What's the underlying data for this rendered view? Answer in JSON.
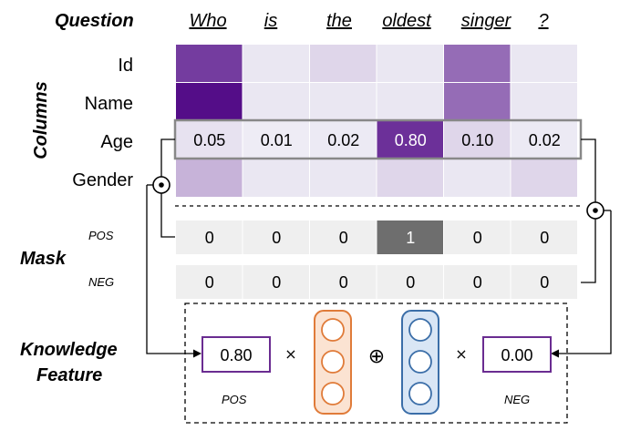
{
  "labels": {
    "question": "Question",
    "columns": "Columns",
    "mask": "Mask",
    "knowledge_line1": "Knowledge",
    "knowledge_line2": "Feature",
    "pos": "POS",
    "neg": "NEG"
  },
  "question_tokens": [
    "Who",
    "is",
    "the",
    "oldest",
    "singer",
    "?"
  ],
  "column_names": [
    "Id",
    "Name",
    "Age",
    "Gender"
  ],
  "attention": [
    [
      0.75,
      0.03,
      0.1,
      0.03,
      0.55,
      0.03
    ],
    [
      0.95,
      0.03,
      0.03,
      0.03,
      0.55,
      0.03
    ],
    [
      0.05,
      0.01,
      0.02,
      0.8,
      0.1,
      0.02
    ],
    [
      0.25,
      0.03,
      0.03,
      0.1,
      0.03,
      0.1
    ]
  ],
  "age_row_labels": [
    "0.05",
    "0.01",
    "0.02",
    "0.80",
    "0.10",
    "0.02"
  ],
  "mask_pos": [
    "0",
    "0",
    "0",
    "1",
    "0",
    "0"
  ],
  "mask_neg": [
    "0",
    "0",
    "0",
    "0",
    "0",
    "0"
  ],
  "feature": {
    "pos_value": "0.80",
    "neg_value": "0.00",
    "times_symbol": "×",
    "concat_symbol": "⊕",
    "odot_symbol": "⊙"
  },
  "colors": {
    "attention_base": "#4b0082",
    "pos_highlight": "#6e6e6e",
    "mask_bg": "#efefef",
    "feature_box": "#6a2c91",
    "pos_vector": "#e07b39",
    "neg_vector": "#3b6ea8"
  }
}
